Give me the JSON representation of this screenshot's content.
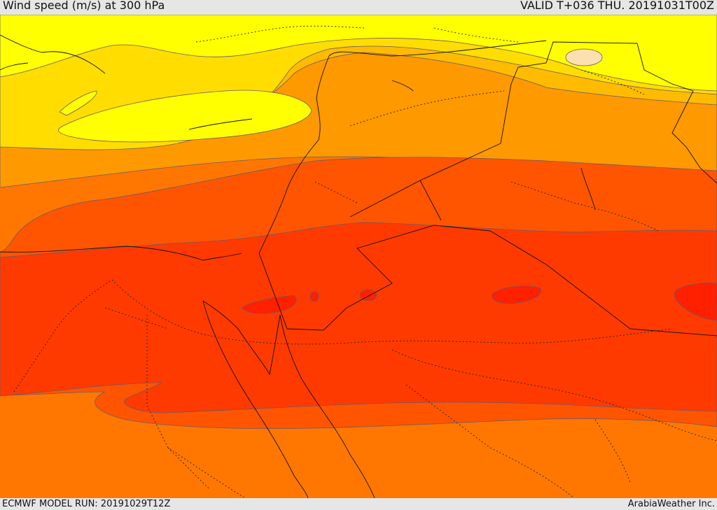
{
  "header": {
    "title": "Wind speed (m/s) at 300 hPa",
    "valid": "VALID T+036 THU. 20191031T00Z"
  },
  "footer": {
    "model_run": "ECMWF MODEL RUN: 20191029T12Z",
    "credit": "ArabiaWeather Inc."
  },
  "colors": {
    "band_20_25": "#ffff00",
    "band_25_30": "#ffdd00",
    "band_30_35": "#ffbb00",
    "band_35_40": "#ff9900",
    "band_40_45": "#ff7700",
    "band_45_50": "#ff5500",
    "band_50_55": "#ff3a00",
    "band_55_60": "#ff2000",
    "weak_core": "#fde0b0",
    "contour": "#6a5a6a",
    "coast": "#111111"
  }
}
